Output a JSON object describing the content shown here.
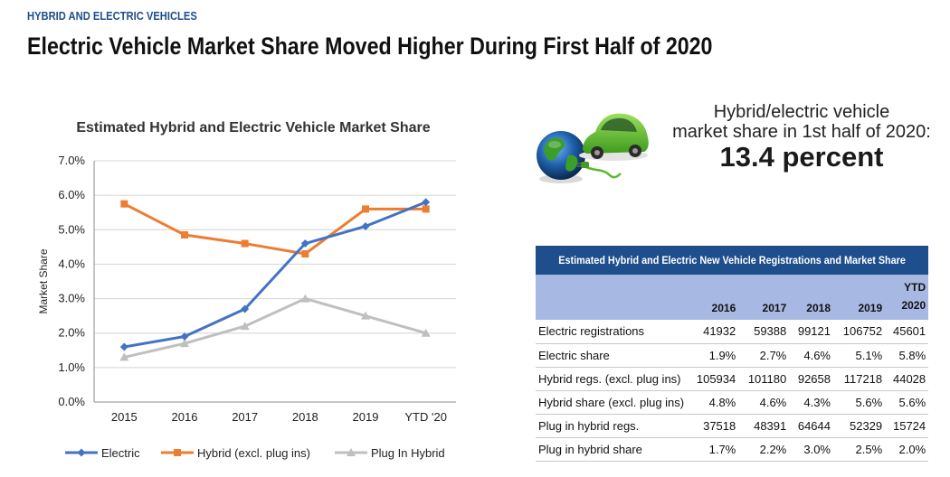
{
  "header": {
    "kicker": "HYBRID AND ELECTRIC VEHICLES",
    "headline": "Electric Vehicle Market Share Moved Higher During First Half of 2020"
  },
  "chart_data": {
    "type": "line",
    "title": "Estimated Hybrid and Electric Vehicle Market Share",
    "ylabel": "Market Share",
    "xlabel": "",
    "categories": [
      "2015",
      "2016",
      "2017",
      "2018",
      "2019",
      "YTD '20"
    ],
    "ylim": [
      0,
      7
    ],
    "yticks": [
      "0.0%",
      "1.0%",
      "2.0%",
      "3.0%",
      "4.0%",
      "5.0%",
      "6.0%",
      "7.0%"
    ],
    "grid": true,
    "legend": "bottom",
    "series": [
      {
        "name": "Electric",
        "values": [
          1.6,
          1.9,
          2.7,
          4.6,
          5.1,
          5.8
        ],
        "color": "#4472c4",
        "marker": "diamond"
      },
      {
        "name": "Hybrid (excl. plug ins)",
        "values": [
          5.75,
          4.85,
          4.6,
          4.3,
          5.6,
          5.6
        ],
        "color": "#ed7d31",
        "marker": "square"
      },
      {
        "name": "Plug In Hybrid",
        "values": [
          1.3,
          1.7,
          2.2,
          3.0,
          2.5,
          2.0
        ],
        "color": "#bfbfbf",
        "marker": "triangle"
      }
    ]
  },
  "callout": {
    "line1": "Hybrid/electric vehicle",
    "line2": "market share in 1st half of 2020:",
    "value": "13.4 percent"
  },
  "illustration": {
    "icons": [
      "globe-icon",
      "green-car-icon",
      "charging-plug-icon"
    ],
    "colors": {
      "car": "#5cb82a",
      "globe_water": "#1e5fa8",
      "globe_land": "#3c9e2a"
    }
  },
  "table": {
    "title": "Estimated Hybrid and Electric New Vehicle Registrations and Market Share",
    "columns": [
      "2016",
      "2017",
      "2018",
      "2019",
      "YTD 2020"
    ],
    "rows": [
      {
        "label": "Electric registrations",
        "values": [
          "41932",
          "59388",
          "99121",
          "106752",
          "45601"
        ]
      },
      {
        "label": "Electric share",
        "values": [
          "1.9%",
          "2.7%",
          "4.6%",
          "5.1%",
          "5.8%"
        ]
      },
      {
        "label": "Hybrid regs. (excl. plug ins)",
        "values": [
          "105934",
          "101180",
          "92658",
          "117218",
          "44028"
        ]
      },
      {
        "label": "Hybrid share (excl. plug ins)",
        "values": [
          "4.8%",
          "4.6%",
          "4.3%",
          "5.6%",
          "5.6%"
        ]
      },
      {
        "label": "Plug in hybrid regs.",
        "values": [
          "37518",
          "48391",
          "64644",
          "52329",
          "15724"
        ]
      },
      {
        "label": "Plug in hybrid share",
        "values": [
          "1.7%",
          "2.2%",
          "3.0%",
          "2.5%",
          "2.0%"
        ]
      }
    ]
  }
}
